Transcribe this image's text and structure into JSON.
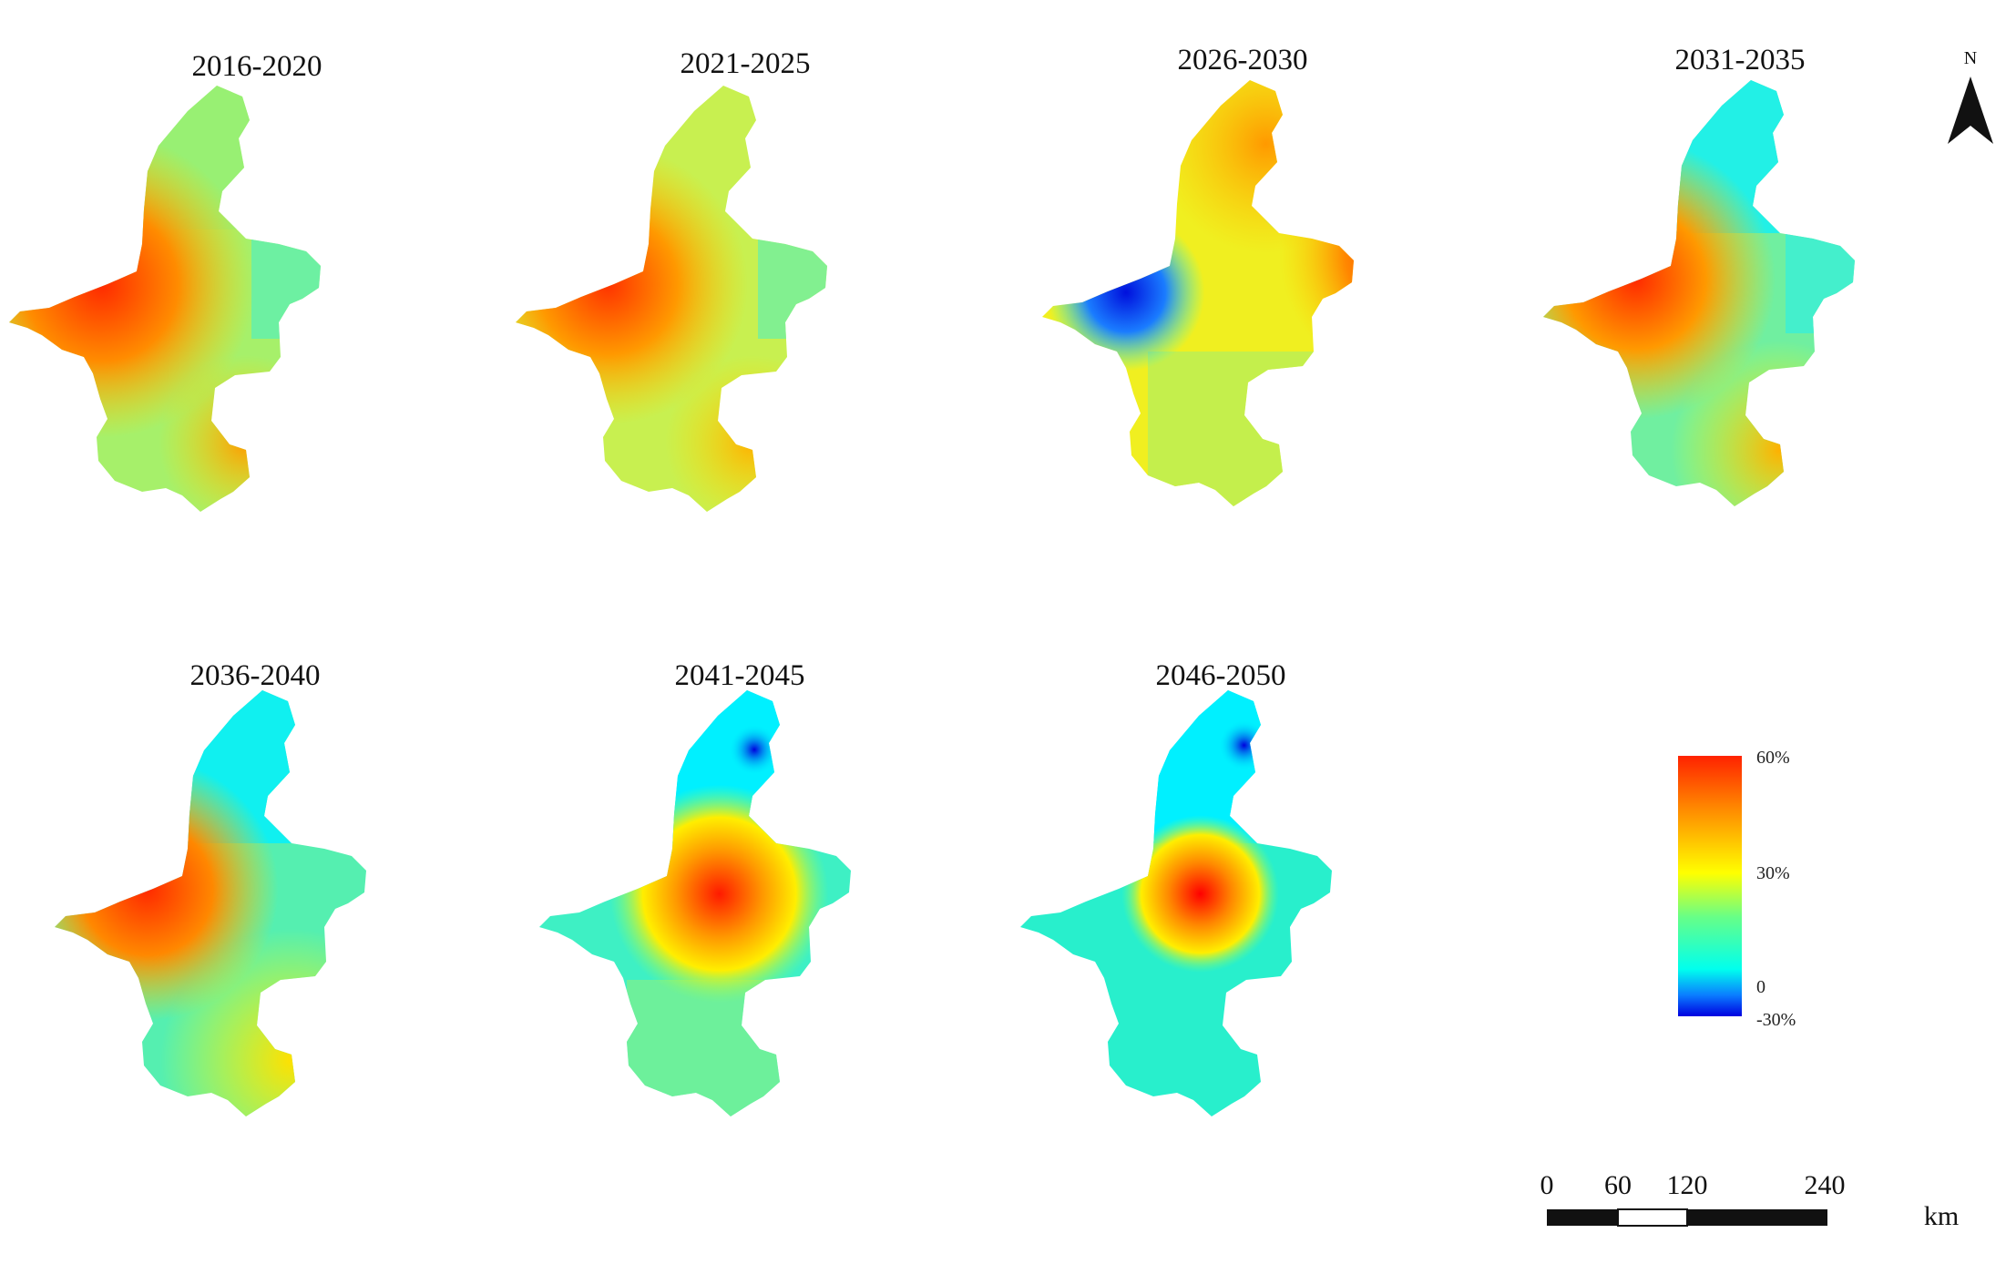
{
  "figure": {
    "panels": [
      {
        "title": "2016-2020"
      },
      {
        "title": "2021-2025"
      },
      {
        "title": "2026-2030"
      },
      {
        "title": "2031-2035"
      },
      {
        "title": "2036-2040"
      },
      {
        "title": "2041-2045"
      },
      {
        "title": "2046-2050"
      }
    ],
    "legend": {
      "labels": [
        "60%",
        "30%",
        "0",
        "-30%"
      ],
      "colors": [
        "#ff2200",
        "#ffff00",
        "#00ffee",
        "#0000e0"
      ]
    },
    "scale_bar": {
      "ticks": [
        "0",
        "60",
        "120",
        "240"
      ],
      "unit": "km"
    },
    "north_arrow": {
      "label": "N"
    }
  }
}
